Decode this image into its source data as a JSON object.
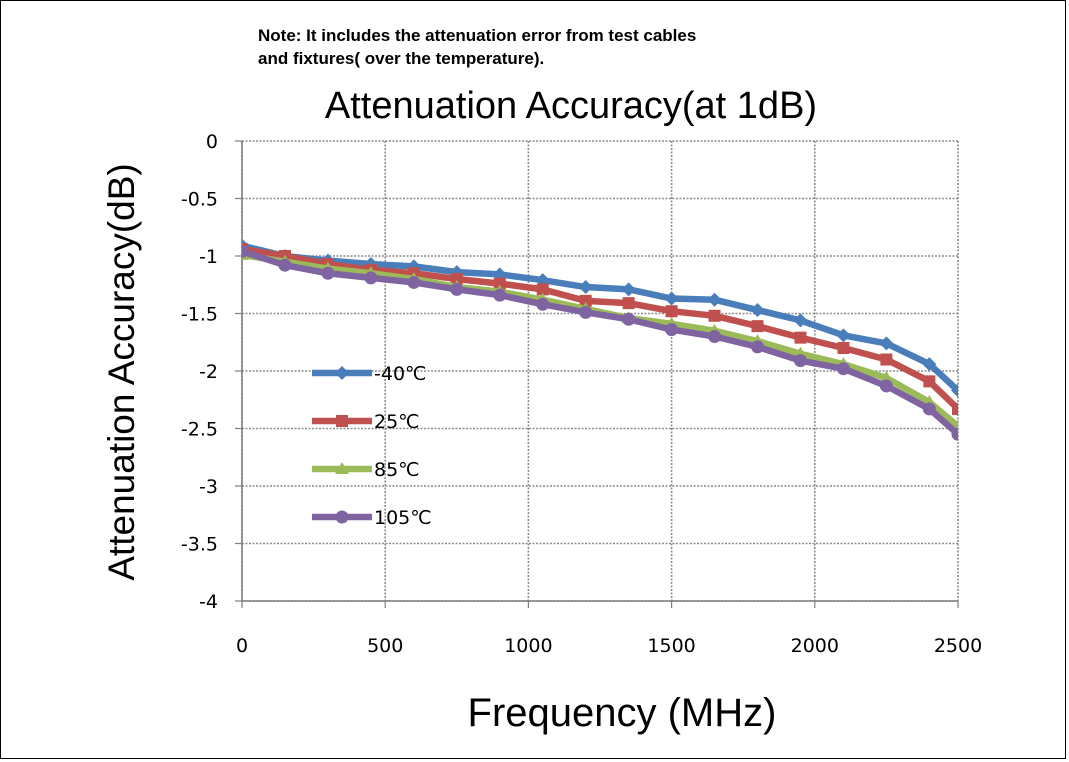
{
  "note": {
    "line1": "Note: It includes the attenuation error from test cables",
    "line2": "and fixtures( over the temperature)."
  },
  "chart_data": {
    "type": "line",
    "title": "Attenuation Accuracy(at 1dB)",
    "xlabel": "Frequency (MHz)",
    "ylabel": "Attenuation Accuracy(dB)",
    "xlim": [
      0,
      2500
    ],
    "ylim": [
      -4,
      0
    ],
    "xticks": [
      "0",
      "500",
      "1000",
      "1500",
      "2000",
      "2500"
    ],
    "yticks": [
      "0",
      "-0.5",
      "-1",
      "-1.5",
      "-2",
      "-2.5",
      "-3",
      "-3.5",
      "-4"
    ],
    "grid": true,
    "legend_position": "left",
    "x": [
      0,
      150,
      300,
      450,
      600,
      750,
      900,
      1050,
      1200,
      1350,
      1500,
      1650,
      1800,
      1950,
      2100,
      2250,
      2400,
      2500
    ],
    "series": [
      {
        "name": "-40℃",
        "color": "#4a7ebb",
        "marker": "diamond",
        "values": [
          -0.91,
          -1.0,
          -1.04,
          -1.07,
          -1.09,
          -1.14,
          -1.16,
          -1.21,
          -1.27,
          -1.29,
          -1.37,
          -1.38,
          -1.47,
          -1.56,
          -1.69,
          -1.76,
          -1.94,
          -2.17
        ]
      },
      {
        "name": "25℃",
        "color": "#c0504d",
        "marker": "square",
        "values": [
          -0.94,
          -1.0,
          -1.07,
          -1.12,
          -1.15,
          -1.2,
          -1.24,
          -1.29,
          -1.39,
          -1.41,
          -1.48,
          -1.52,
          -1.61,
          -1.71,
          -1.8,
          -1.9,
          -2.09,
          -2.33
        ]
      },
      {
        "name": "85℃",
        "color": "#9bbb59",
        "marker": "triangle",
        "values": [
          -0.99,
          -1.05,
          -1.11,
          -1.15,
          -1.2,
          -1.27,
          -1.31,
          -1.38,
          -1.46,
          -1.54,
          -1.59,
          -1.65,
          -1.74,
          -1.85,
          -1.94,
          -2.06,
          -2.27,
          -2.48
        ]
      },
      {
        "name": "105℃",
        "color": "#8064a2",
        "marker": "circle",
        "values": [
          -0.96,
          -1.08,
          -1.15,
          -1.19,
          -1.23,
          -1.29,
          -1.34,
          -1.42,
          -1.49,
          -1.55,
          -1.64,
          -1.7,
          -1.79,
          -1.91,
          -1.98,
          -2.13,
          -2.33,
          -2.55
        ]
      }
    ]
  }
}
